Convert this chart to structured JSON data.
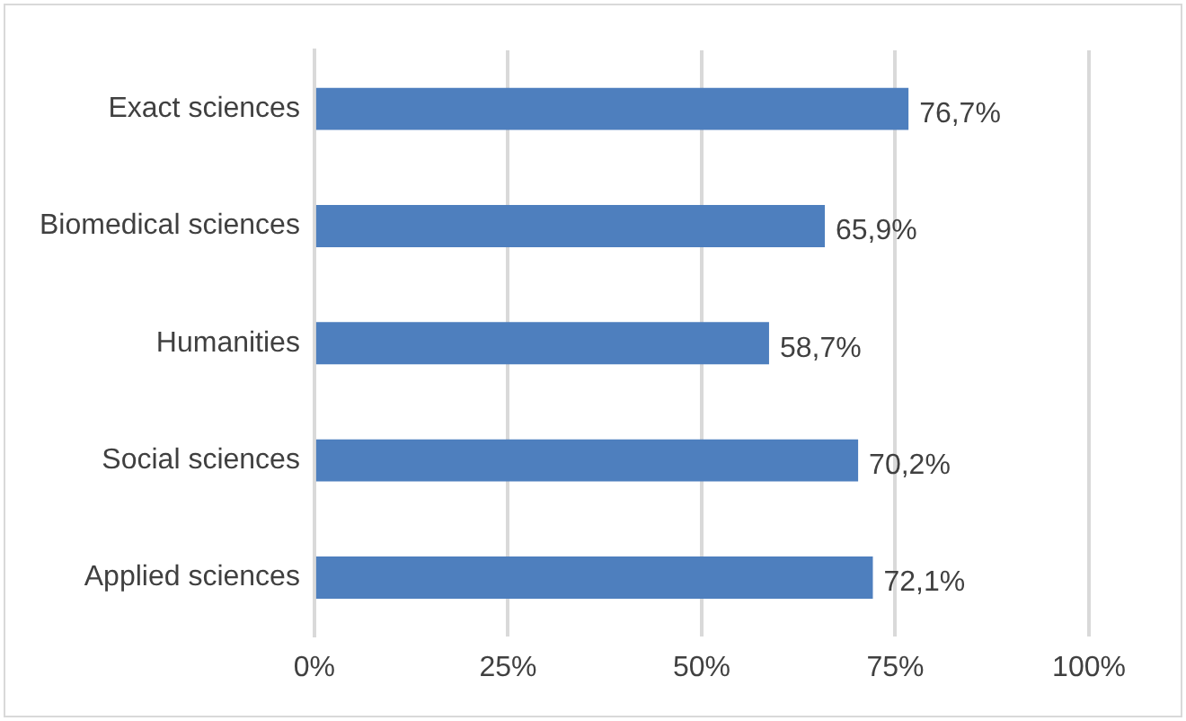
{
  "chart_data": {
    "type": "bar",
    "orientation": "horizontal",
    "categories": [
      "Exact sciences",
      "Biomedical sciences",
      "Humanities",
      "Social sciences",
      "Applied sciences"
    ],
    "values": [
      76.7,
      65.9,
      58.7,
      70.2,
      72.1
    ],
    "value_labels": [
      "76,7%",
      "65,9%",
      "58,7%",
      "70,2%",
      "72,1%"
    ],
    "color": "#4e7fbe",
    "xlim": [
      0,
      100
    ],
    "xticks": [
      {
        "value": 0,
        "label": "0%"
      },
      {
        "value": 25,
        "label": "25%"
      },
      {
        "value": 50,
        "label": "50%"
      },
      {
        "value": 75,
        "label": "75%"
      },
      {
        "value": 100,
        "label": "100%"
      }
    ],
    "grid": "x",
    "legend": false
  }
}
